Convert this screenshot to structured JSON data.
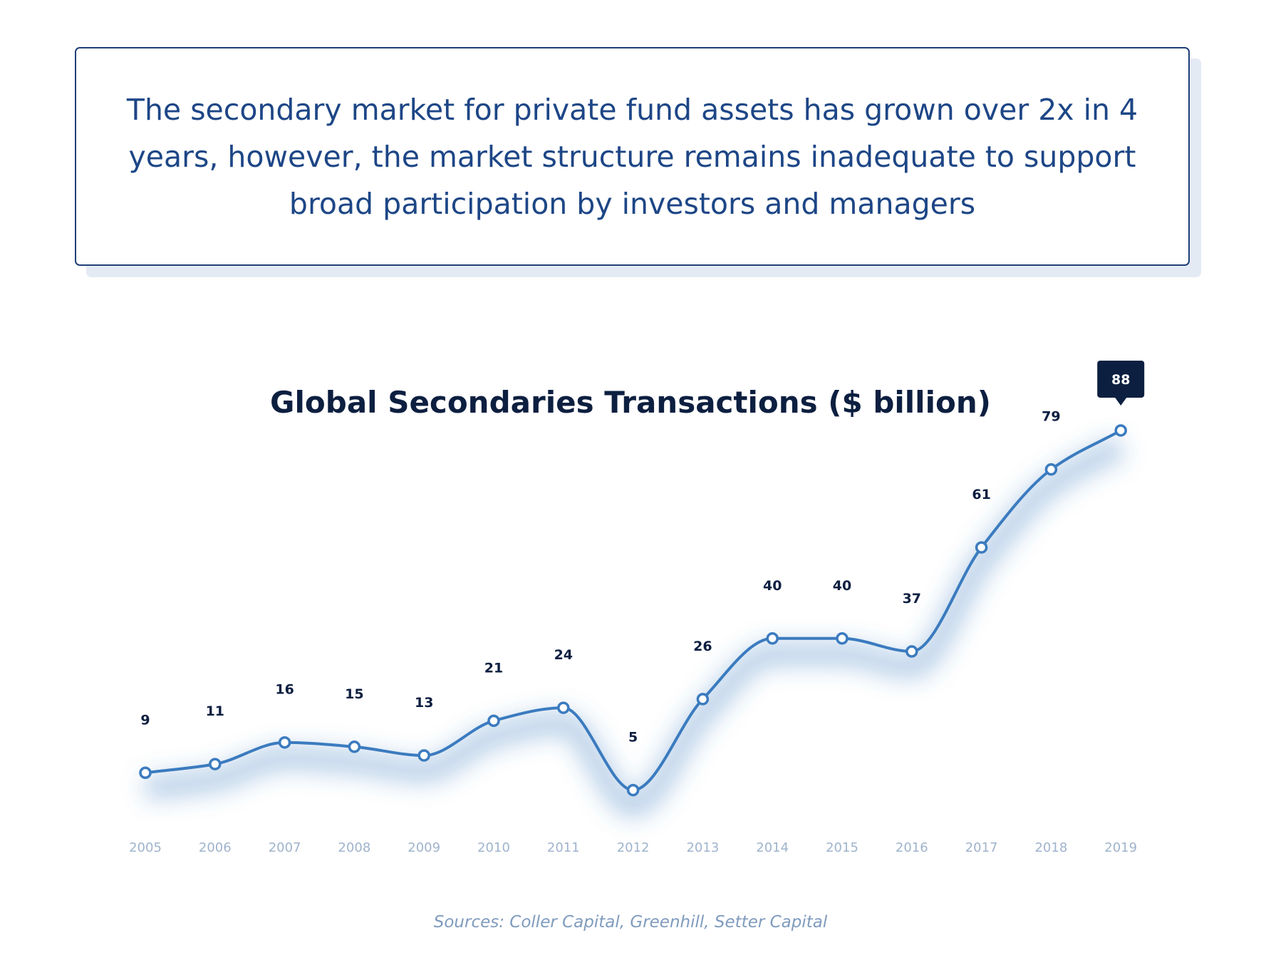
{
  "headline": {
    "text": "The secondary market for private fund assets has grown over 2x in 4 years, however, the market structure remains inadequate to support broad participation by investors and managers"
  },
  "chart_data": {
    "type": "line",
    "title": "Global Secondaries Transactions ($ billion)",
    "xlabel": "",
    "ylabel": "",
    "categories": [
      "2005",
      "2006",
      "2007",
      "2008",
      "2009",
      "2010",
      "2011",
      "2012",
      "2013",
      "2014",
      "2015",
      "2016",
      "2017",
      "2018",
      "2019"
    ],
    "values": [
      9,
      11,
      16,
      15,
      13,
      21,
      24,
      5,
      26,
      40,
      40,
      37,
      61,
      79,
      88
    ],
    "data_labels": [
      "9",
      "11",
      "16",
      "15",
      "13",
      "21",
      "24",
      "5",
      "26",
      "40",
      "40",
      "37",
      "61",
      "79",
      "88"
    ],
    "highlighted_index": 14,
    "grid": false,
    "legend": "none",
    "curve": "smooth"
  },
  "source": "Sources: Coller Capital, Greenhill, Setter Capital",
  "colors": {
    "line": "#3b7bbf",
    "marker_fill": "#ffffff",
    "label": "#0d1f40",
    "tick": "#9fb3cc",
    "callout_bg": "#0d1f40",
    "headline_text": "#1d4686",
    "headline_border": "#1e3f78",
    "source": "#7f9bbd"
  }
}
